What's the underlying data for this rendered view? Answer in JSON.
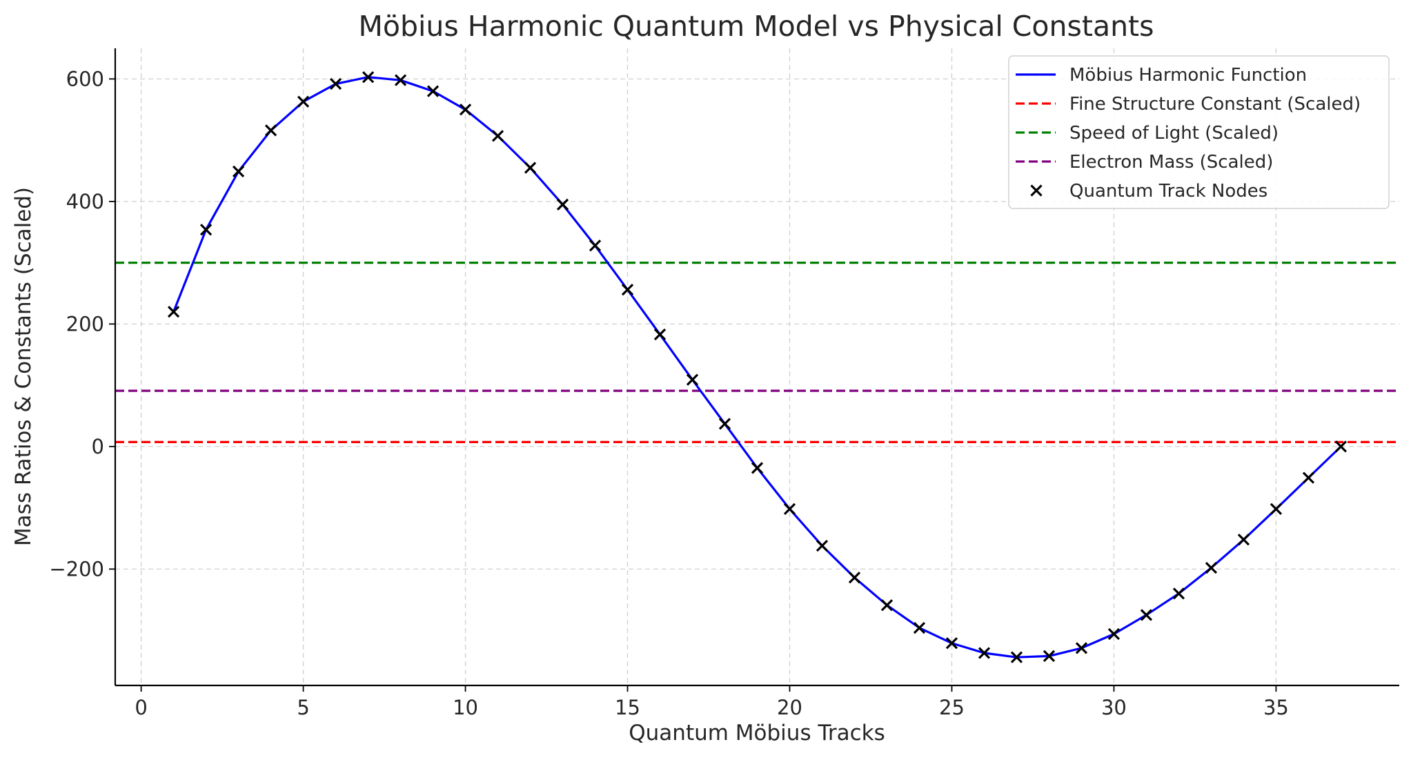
{
  "chart_data": {
    "type": "line",
    "title": "Möbius Harmonic Quantum Model vs Physical Constants",
    "xlabel": "Quantum Möbius Tracks",
    "ylabel": "Mass Ratios & Constants (Scaled)",
    "xlim": [
      -0.8,
      38.8
    ],
    "ylim": [
      -390,
      650
    ],
    "xticks": [
      0,
      5,
      10,
      15,
      20,
      25,
      30,
      35
    ],
    "yticks": [
      -200,
      0,
      200,
      400,
      600
    ],
    "ytick_labels": [
      "−200",
      "0",
      "200",
      "400",
      "600"
    ],
    "grid": true,
    "legend_position": "top-right",
    "series": [
      {
        "name": "Möbius Harmonic Function",
        "kind": "line",
        "color": "#0000ff",
        "x": [
          1,
          2,
          3,
          4,
          5,
          6,
          7,
          8,
          9,
          10,
          11,
          12,
          13,
          14,
          15,
          16,
          17,
          18,
          19,
          20,
          21,
          22,
          23,
          24,
          25,
          26,
          27,
          28,
          29,
          30,
          31,
          32,
          33,
          34,
          35,
          36,
          37
        ],
        "y": [
          220,
          354,
          449,
          516,
          563,
          592,
          603,
          598,
          580,
          550,
          507,
          455,
          395,
          328,
          256,
          183,
          109,
          37,
          -35,
          -102,
          -162,
          -214,
          -259,
          -296,
          -321,
          -337,
          -344,
          -342,
          -329,
          -306,
          -275,
          -240,
          -198,
          -152,
          -102,
          -51,
          0
        ]
      },
      {
        "name": "Fine Structure Constant (Scaled)",
        "kind": "hline",
        "color": "#ff0000",
        "y": 7.3
      },
      {
        "name": "Speed of Light (Scaled)",
        "kind": "hline",
        "color": "#008000",
        "y": 300
      },
      {
        "name": "Electron Mass (Scaled)",
        "kind": "hline",
        "color": "#800080",
        "y": 91
      },
      {
        "name": "Quantum Track Nodes",
        "kind": "scatter",
        "marker": "x",
        "color": "#000000",
        "x": [
          1,
          2,
          3,
          4,
          5,
          6,
          7,
          8,
          9,
          10,
          11,
          12,
          13,
          14,
          15,
          16,
          17,
          18,
          19,
          20,
          21,
          22,
          23,
          24,
          25,
          26,
          27,
          28,
          29,
          30,
          31,
          32,
          33,
          34,
          35,
          36,
          37
        ],
        "y": [
          220,
          354,
          449,
          516,
          563,
          592,
          603,
          598,
          580,
          550,
          507,
          455,
          395,
          328,
          256,
          183,
          109,
          37,
          -35,
          -102,
          -162,
          -214,
          -259,
          -296,
          -321,
          -337,
          -344,
          -342,
          -329,
          -306,
          -275,
          -240,
          -198,
          -152,
          -102,
          -51,
          0
        ]
      }
    ]
  }
}
